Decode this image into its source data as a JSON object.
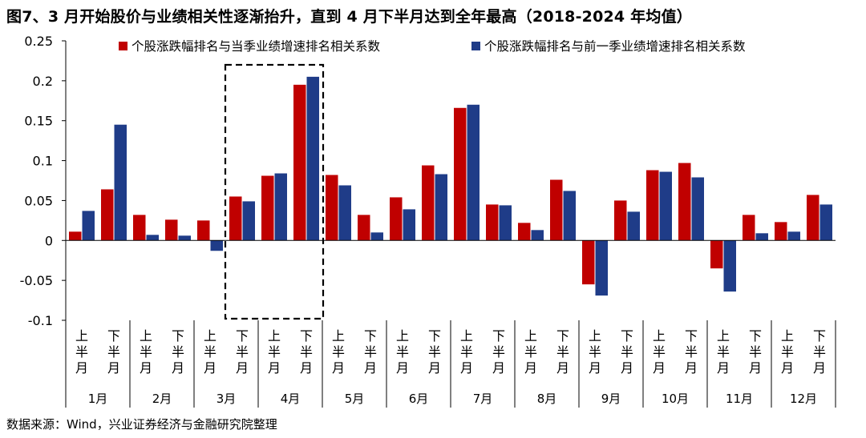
{
  "title": "图7、3 月开始股价与业绩相关性逐渐抬升，直到 4 月下半月达到全年最高（2018-2024 年均值）",
  "source": "数据来源：Wind，兴业证券经济与金融研究院整理",
  "colors": {
    "series1": "#C00000",
    "series2": "#1F3C88",
    "axis": "#000000",
    "box": "#000000"
  },
  "chart_data": {
    "type": "bar",
    "categories": [
      "1月上半月",
      "1月下半月",
      "2月上半月",
      "2月下半月",
      "3月上半月",
      "3月下半月",
      "4月上半月",
      "4月下半月",
      "5月上半月",
      "5月下半月",
      "6月上半月",
      "6月下半月",
      "7月上半月",
      "7月下半月",
      "8月上半月",
      "8月下半月",
      "9月上半月",
      "9月下半月",
      "10月上半月",
      "10月下半月",
      "11月上半月",
      "11月下半月",
      "12月上半月",
      "12月下半月"
    ],
    "half_labels": [
      "上半月",
      "下半月"
    ],
    "months": [
      "1月",
      "2月",
      "3月",
      "4月",
      "5月",
      "6月",
      "7月",
      "8月",
      "9月",
      "10月",
      "11月",
      "12月"
    ],
    "series": [
      {
        "name": "个股涨跌幅排名与当季业绩增速排名相关系数",
        "values": [
          0.011,
          0.064,
          0.032,
          0.026,
          0.025,
          0.055,
          0.081,
          0.195,
          0.082,
          0.032,
          0.054,
          0.094,
          0.166,
          0.045,
          0.022,
          0.076,
          -0.055,
          0.05,
          0.088,
          0.097,
          -0.035,
          0.032,
          0.023,
          0.057
        ]
      },
      {
        "name": "个股涨跌幅排名与前一季业绩增速排名相关系数",
        "values": [
          0.037,
          0.145,
          0.007,
          0.006,
          -0.013,
          0.049,
          0.084,
          0.205,
          0.069,
          0.01,
          0.039,
          0.083,
          0.17,
          0.044,
          0.013,
          0.062,
          -0.069,
          0.036,
          0.086,
          0.079,
          -0.064,
          0.009,
          0.011,
          0.045
        ]
      }
    ],
    "ylim": [
      -0.1,
      0.25
    ],
    "yticks": [
      -0.1,
      -0.05,
      0,
      0.05,
      0.1,
      0.15,
      0.2,
      0.25
    ],
    "ytick_labels": [
      "-0.1",
      "-0.05",
      "0",
      "0.05",
      "0.1",
      "0.15",
      "0.2",
      "0.25"
    ],
    "highlight_range": [
      "3月下半月",
      "4月下半月"
    ],
    "legend_position": "top",
    "grid": false
  }
}
